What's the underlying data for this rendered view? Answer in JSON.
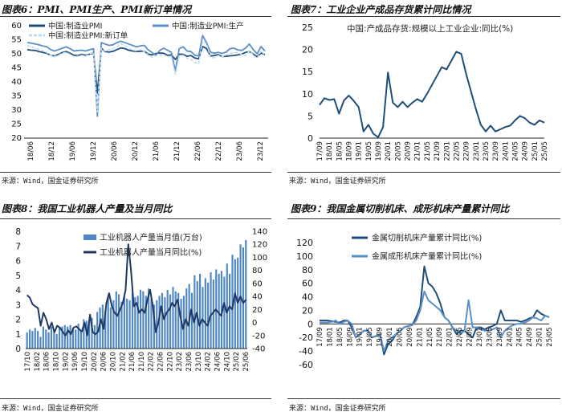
{
  "chart_data": [
    {
      "type": "line",
      "title": "图表6：PMI、PMI生产、PMI新订单情况",
      "source": "来源：Wind，国金证券研究所",
      "ylim": [
        20,
        60
      ],
      "yticks": [
        20,
        25,
        30,
        35,
        40,
        45,
        50,
        55,
        60
      ],
      "x_labels": [
        "18/06",
        "18/12",
        "19/06",
        "19/12",
        "20/06",
        "20/12",
        "21/06",
        "21/12",
        "22/06",
        "22/12",
        "23/06",
        "23/12"
      ],
      "series": [
        {
          "name": "中国:制造业PMI",
          "color": "#1f4e79",
          "width": 1.8,
          "values": [
            51.5,
            51.3,
            51.2,
            50.8,
            50.5,
            50.2,
            49.5,
            49.2,
            49.8,
            50.5,
            50.8,
            50.2,
            49.5,
            49.4,
            49.8,
            49.5,
            49.9,
            50.2,
            36.0,
            52.0,
            50.8,
            50.6,
            50.9,
            51.5,
            52.1,
            51.9,
            51.3,
            51.0,
            50.8,
            50.9,
            51.0,
            49.9,
            49.6,
            50.1,
            50.3,
            50.2,
            49.5,
            49.6,
            48.0,
            49.9,
            49.8,
            49.1,
            49.4,
            48.5,
            48.2,
            52.6,
            51.9,
            49.2,
            49.4,
            49.7,
            49.0,
            49.1,
            49.3,
            49.4,
            49.6,
            49.9,
            50.5,
            50.8,
            49.9,
            49.0,
            50.3,
            49.7
          ]
        },
        {
          "name": "中国:制造业PMI:生产",
          "color": "#5b8fc7",
          "width": 1.8,
          "values": [
            54.0,
            53.8,
            53.5,
            53.2,
            52.8,
            52.5,
            51.5,
            51.0,
            51.5,
            52.0,
            52.5,
            51.8,
            51.0,
            51.2,
            51.3,
            51.0,
            51.5,
            51.8,
            27.8,
            54.0,
            53.5,
            53.0,
            53.2,
            54.0,
            54.5,
            54.0,
            53.5,
            53.0,
            52.5,
            52.8,
            53.0,
            51.5,
            50.5,
            49.5,
            51.2,
            52.0,
            51.3,
            50.5,
            44.0,
            51.8,
            52.5,
            51.0,
            50.8,
            49.5,
            49.2,
            56.5,
            54.0,
            50.6,
            50.2,
            50.5,
            50.1,
            50.6,
            51.8,
            52.0,
            51.4,
            51.2,
            52.0,
            53.5,
            51.5,
            50.0,
            52.6,
            51.0
          ]
        },
        {
          "name": "中国:制造业PMI:新订单",
          "color": "#c2d9ee",
          "width": 1.6,
          "dashed": true,
          "values": [
            53.0,
            52.5,
            52.0,
            51.5,
            51.0,
            50.5,
            49.5,
            49.0,
            49.5,
            50.3,
            50.5,
            49.8,
            49.0,
            49.1,
            49.5,
            49.2,
            50.0,
            50.5,
            29.3,
            52.0,
            51.0,
            51.5,
            51.8,
            52.5,
            53.5,
            53.0,
            52.0,
            51.5,
            51.0,
            51.5,
            51.0,
            49.5,
            48.8,
            49.3,
            49.5,
            49.8,
            49.0,
            49.0,
            42.6,
            49.2,
            49.5,
            48.5,
            48.0,
            47.0,
            46.5,
            54.5,
            53.6,
            48.8,
            48.6,
            49.4,
            48.9,
            49.6,
            50.2,
            50.3,
            50.5,
            49.8,
            49.4,
            51.0,
            49.6,
            48.3,
            51.1,
            49.5
          ]
        }
      ]
    },
    {
      "type": "line",
      "title": "图表7：工业企业产成品存货累计同比情况",
      "source": "来源：Wind，国金证券研究所",
      "legend": "中国:产成品存货:规模以上工业企业:同比(%)",
      "ylim": [
        0,
        25
      ],
      "yticks": [
        0,
        5,
        10,
        15,
        20,
        25
      ],
      "x_labels": [
        "17/09",
        "18/01",
        "18/05",
        "18/09",
        "19/01",
        "19/05",
        "19/09",
        "20/01",
        "20/05",
        "20/09",
        "21/01",
        "21/05",
        "21/09",
        "22/01",
        "22/05",
        "22/09",
        "23/01",
        "23/05",
        "23/09",
        "24/01",
        "24/05",
        "24/09",
        "25/01",
        "25/05"
      ],
      "series": [
        {
          "name": "中国:产成品存货:规模以上工业企业:同比(%)",
          "color": "#1f4e79",
          "width": 2.0,
          "values": [
            7.5,
            9.0,
            8.6,
            8.8,
            5.5,
            8.5,
            9.6,
            8.4,
            7.0,
            1.5,
            3.0,
            1.0,
            0.2,
            2.5,
            14.8,
            8.0,
            7.0,
            8.2,
            7.0,
            8.0,
            8.8,
            8.2,
            10.0,
            12.0,
            14.0,
            16.0,
            15.5,
            17.5,
            19.5,
            19.0,
            14.5,
            10.5,
            6.5,
            3.0,
            1.5,
            2.8,
            1.5,
            2.0,
            2.5,
            2.8,
            4.0,
            5.0,
            4.5,
            3.5,
            3.0,
            4.0,
            3.5
          ]
        }
      ]
    },
    {
      "type": "bar",
      "title": "图表8：我国工业机器人产量及当月同比",
      "source": "来源：Wind，国金证券研究所",
      "ylim_left": [
        0,
        8
      ],
      "yticks_left": [
        0,
        1,
        2,
        3,
        4,
        5,
        6,
        7,
        8
      ],
      "ylim_right": [
        -40,
        140
      ],
      "yticks_right": [
        -40,
        -20,
        0,
        20,
        40,
        60,
        80,
        100,
        120,
        140
      ],
      "x_labels": [
        "17/10",
        "18/02",
        "18/06",
        "18/10",
        "19/02",
        "19/06",
        "19/10",
        "20/02",
        "20/06",
        "20/10",
        "21/02",
        "21/06",
        "21/10",
        "22/02",
        "22/06",
        "22/10",
        "23/02",
        "23/06",
        "23/10",
        "24/02",
        "24/06",
        "24/10",
        "25/02",
        "25/06"
      ],
      "series": [
        {
          "name": "工业机器人产量当月值(万台)",
          "type": "bar",
          "color": "#4f87c5",
          "values": [
            1.1,
            1.3,
            1.2,
            1.4,
            1.2,
            0.8,
            1.5,
            1.3,
            1.1,
            1.5,
            1.2,
            1.0,
            1.4,
            1.5,
            1.6,
            1.5,
            1.6,
            1.4,
            1.3,
            1.7,
            1.2,
            2.0,
            1.9,
            1.8,
            2.1,
            1.6,
            2.5,
            2.8,
            3.0,
            2.6,
            3.5,
            2.8,
            3.3,
            3.9,
            3.7,
            3.2,
            3.6,
            3.4,
            3.3,
            3.8,
            3.5,
            3.6,
            4.0,
            3.9,
            3.6,
            4.1,
            3.4,
            3.0,
            3.3,
            3.6,
            3.8,
            3.5,
            4.0,
            3.7,
            4.2,
            3.9,
            3.8,
            3.4,
            3.6,
            4.1,
            4.4,
            3.8,
            5.0,
            4.6,
            5.1,
            4.2,
            4.8,
            4.5,
            5.2,
            4.7,
            5.4,
            5.1,
            5.3,
            4.9,
            5.8,
            5.1,
            6.4,
            6.1,
            6.2,
            7.1,
            6.9,
            7.4
          ]
        },
        {
          "name": "工业机器人产量当月同比(%)",
          "type": "line",
          "color": "#1f3864",
          "values": [
            42,
            38,
            28,
            25,
            22,
            -5,
            15,
            5,
            -10,
            0,
            -15,
            -5,
            -8,
            -14,
            -20,
            -12,
            -18,
            -8,
            -6,
            -10,
            -14,
            0,
            -20,
            12,
            -15,
            -18,
            -14,
            5,
            -10,
            30,
            45,
            25,
            15,
            10,
            20,
            30,
            50,
            120,
            80,
            25,
            30,
            15,
            20,
            15,
            35,
            50,
            25,
            -15,
            0,
            25,
            5,
            15,
            20,
            30,
            25,
            35,
            10,
            -10,
            5,
            -5,
            20,
            0,
            15,
            -5,
            5,
            0,
            -5,
            10,
            15,
            20,
            15,
            10,
            30,
            15,
            25,
            20,
            45,
            30,
            40,
            30,
            35
          ]
        }
      ]
    },
    {
      "type": "line",
      "title": "图表9：我国金属切削机床、成形机床产量累计同比",
      "source": "来源：Wind，国金证券研究所",
      "ylim": [
        -60,
        120
      ],
      "yticks": [
        -60,
        -40,
        -20,
        0,
        20,
        40,
        60,
        80,
        100,
        120
      ],
      "x_labels": [
        "17/09",
        "18/01",
        "18/05",
        "18/09",
        "19/01",
        "19/05",
        "19/09",
        "20/01",
        "20/05",
        "20/09",
        "21/01",
        "21/05",
        "21/09",
        "22/01",
        "22/05",
        "22/09",
        "23/01",
        "23/05",
        "23/09",
        "24/01",
        "24/05",
        "24/09",
        "25/01",
        "25/05"
      ],
      "series": [
        {
          "name": "金属切削机床产量累计同比(%)",
          "color": "#1f4e79",
          "width": 2.0,
          "values": [
            5,
            5,
            5,
            4,
            3,
            2,
            5,
            5,
            -5,
            -20,
            -15,
            -10,
            -10,
            -20,
            -18,
            -15,
            -45,
            -30,
            -25,
            -15,
            -10,
            -5,
            -3,
            -2,
            10,
            25,
            85,
            60,
            55,
            45,
            30,
            10,
            5,
            -5,
            -15,
            -10,
            -10,
            -15,
            -20,
            -5,
            -5,
            -8,
            -5,
            -3,
            0,
            20,
            5,
            5,
            5,
            5,
            3,
            5,
            8,
            10,
            20,
            15,
            12,
            10
          ]
        },
        {
          "name": "金属成形机床产量累计同比(%)",
          "color": "#5b8fc7",
          "width": 2.0,
          "values": [
            2,
            2,
            2,
            3,
            5,
            0,
            3,
            5,
            0,
            -20,
            -15,
            -10,
            -10,
            -20,
            -18,
            -15,
            -40,
            -25,
            -20,
            -15,
            -10,
            -5,
            -3,
            -2,
            5,
            20,
            48,
            35,
            30,
            25,
            20,
            10,
            5,
            -5,
            -10,
            -15,
            -10,
            35,
            -5,
            -5,
            -8,
            -10,
            -10,
            -8,
            -5,
            -20,
            -10,
            -5,
            -2,
            0,
            0,
            2,
            5,
            10,
            8,
            5,
            12,
            10
          ]
        }
      ]
    }
  ]
}
